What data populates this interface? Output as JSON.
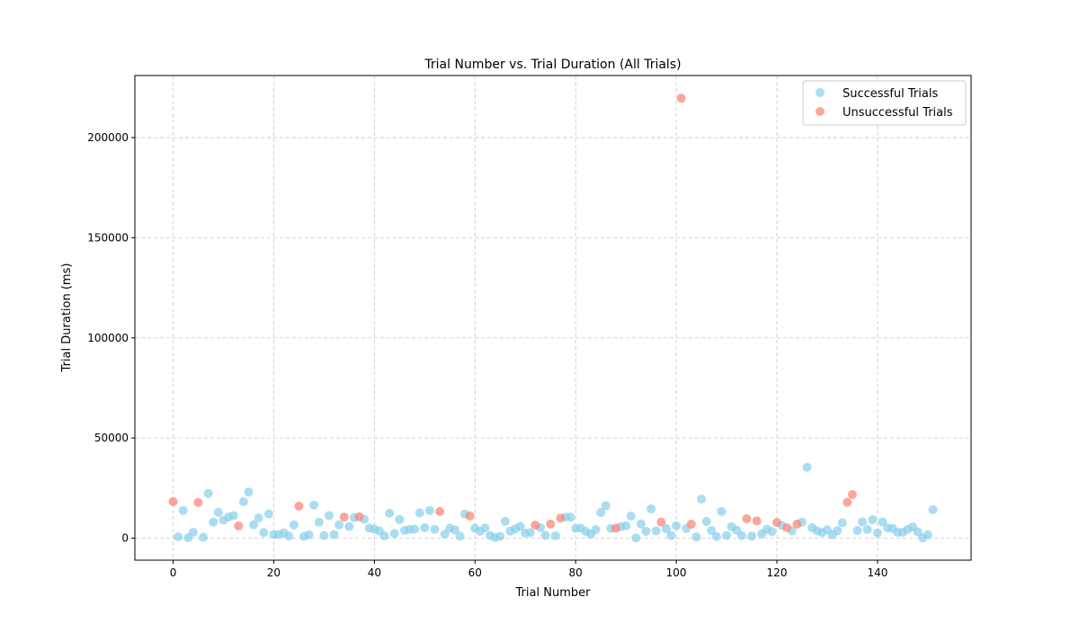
{
  "chart_data": {
    "type": "scatter",
    "title": "Trial Number vs. Trial Duration (All Trials)",
    "xlabel": "Trial Number",
    "ylabel": "Trial Duration (ms)",
    "xlim": [
      -7.6,
      158.6
    ],
    "ylim": [
      -11000,
      231000
    ],
    "xticks": [
      0,
      20,
      40,
      60,
      80,
      100,
      120,
      140
    ],
    "yticks": [
      0,
      50000,
      100000,
      150000,
      200000
    ],
    "xtick_labels": [
      "0",
      "20",
      "40",
      "60",
      "80",
      "100",
      "120",
      "140"
    ],
    "ytick_labels": [
      "0",
      "50000",
      "100000",
      "150000",
      "200000"
    ],
    "grid": true,
    "legend_position": "top-right",
    "series": [
      {
        "name": "Successful Trials",
        "color": "#87ceeb",
        "points": [
          [
            1,
            700
          ],
          [
            2,
            13800
          ],
          [
            3,
            200
          ],
          [
            4,
            2900
          ],
          [
            6,
            400
          ],
          [
            7,
            22300
          ],
          [
            8,
            8000
          ],
          [
            9,
            12900
          ],
          [
            10,
            9000
          ],
          [
            11,
            10500
          ],
          [
            12,
            11300
          ],
          [
            14,
            18200
          ],
          [
            15,
            23000
          ],
          [
            16,
            6700
          ],
          [
            17,
            10100
          ],
          [
            18,
            2800
          ],
          [
            19,
            12100
          ],
          [
            20,
            1800
          ],
          [
            21,
            1800
          ],
          [
            22,
            2600
          ],
          [
            23,
            1000
          ],
          [
            24,
            6600
          ],
          [
            26,
            900
          ],
          [
            27,
            1700
          ],
          [
            28,
            16500
          ],
          [
            29,
            8000
          ],
          [
            30,
            1300
          ],
          [
            31,
            11300
          ],
          [
            32,
            1800
          ],
          [
            33,
            6600
          ],
          [
            35,
            5800
          ],
          [
            36,
            10200
          ],
          [
            38,
            9400
          ],
          [
            39,
            5000
          ],
          [
            40,
            4500
          ],
          [
            41,
            3600
          ],
          [
            42,
            1100
          ],
          [
            43,
            12400
          ],
          [
            44,
            2300
          ],
          [
            45,
            9300
          ],
          [
            46,
            3800
          ],
          [
            47,
            4300
          ],
          [
            48,
            4500
          ],
          [
            49,
            12600
          ],
          [
            50,
            5200
          ],
          [
            51,
            13800
          ],
          [
            52,
            4400
          ],
          [
            54,
            1900
          ],
          [
            55,
            5000
          ],
          [
            56,
            4100
          ],
          [
            57,
            1000
          ],
          [
            58,
            12000
          ],
          [
            60,
            4900
          ],
          [
            61,
            3400
          ],
          [
            62,
            5100
          ],
          [
            63,
            1300
          ],
          [
            64,
            300
          ],
          [
            65,
            900
          ],
          [
            66,
            8400
          ],
          [
            67,
            3500
          ],
          [
            68,
            4600
          ],
          [
            69,
            5900
          ],
          [
            70,
            2500
          ],
          [
            71,
            2800
          ],
          [
            73,
            5200
          ],
          [
            74,
            1400
          ],
          [
            76,
            1200
          ],
          [
            78,
            10500
          ],
          [
            79,
            10500
          ],
          [
            80,
            4900
          ],
          [
            81,
            5000
          ],
          [
            82,
            3400
          ],
          [
            83,
            2000
          ],
          [
            84,
            4200
          ],
          [
            85,
            12800
          ],
          [
            86,
            16200
          ],
          [
            87,
            4800
          ],
          [
            89,
            5700
          ],
          [
            90,
            6200
          ],
          [
            91,
            11000
          ],
          [
            92,
            100
          ],
          [
            93,
            7100
          ],
          [
            94,
            3400
          ],
          [
            95,
            14600
          ],
          [
            96,
            3600
          ],
          [
            98,
            4700
          ],
          [
            99,
            1300
          ],
          [
            100,
            6200
          ],
          [
            102,
            4800
          ],
          [
            104,
            600
          ],
          [
            105,
            19500
          ],
          [
            106,
            8300
          ],
          [
            107,
            3800
          ],
          [
            108,
            800
          ],
          [
            109,
            13300
          ],
          [
            110,
            1300
          ],
          [
            111,
            5700
          ],
          [
            112,
            4000
          ],
          [
            113,
            1300
          ],
          [
            115,
            1000
          ],
          [
            117,
            2100
          ],
          [
            118,
            4400
          ],
          [
            119,
            3300
          ],
          [
            121,
            6400
          ],
          [
            123,
            3600
          ],
          [
            125,
            8000
          ],
          [
            126,
            35400
          ],
          [
            127,
            5200
          ],
          [
            128,
            3600
          ],
          [
            129,
            2800
          ],
          [
            130,
            4200
          ],
          [
            131,
            1700
          ],
          [
            132,
            3700
          ],
          [
            133,
            7700
          ],
          [
            136,
            3800
          ],
          [
            137,
            8100
          ],
          [
            138,
            4300
          ],
          [
            139,
            9200
          ],
          [
            140,
            2600
          ],
          [
            141,
            8100
          ],
          [
            142,
            5100
          ],
          [
            143,
            4800
          ],
          [
            144,
            2900
          ],
          [
            145,
            2900
          ],
          [
            146,
            4400
          ],
          [
            147,
            5600
          ],
          [
            148,
            3100
          ],
          [
            149,
            100
          ],
          [
            150,
            1700
          ],
          [
            151,
            14200
          ]
        ]
      },
      {
        "name": "Unsuccessful Trials",
        "color": "#fa8072",
        "points": [
          [
            0,
            18200
          ],
          [
            5,
            17800
          ],
          [
            13,
            6100
          ],
          [
            25,
            16000
          ],
          [
            34,
            10500
          ],
          [
            37,
            10700
          ],
          [
            53,
            13300
          ],
          [
            59,
            11100
          ],
          [
            72,
            6500
          ],
          [
            75,
            7000
          ],
          [
            77,
            10000
          ],
          [
            88,
            5000
          ],
          [
            97,
            8000
          ],
          [
            101,
            219700
          ],
          [
            103,
            7000
          ],
          [
            114,
            9700
          ],
          [
            116,
            8600
          ],
          [
            120,
            7800
          ],
          [
            122,
            5200
          ],
          [
            124,
            7000
          ],
          [
            134,
            17900
          ],
          [
            135,
            21800
          ]
        ]
      }
    ]
  }
}
